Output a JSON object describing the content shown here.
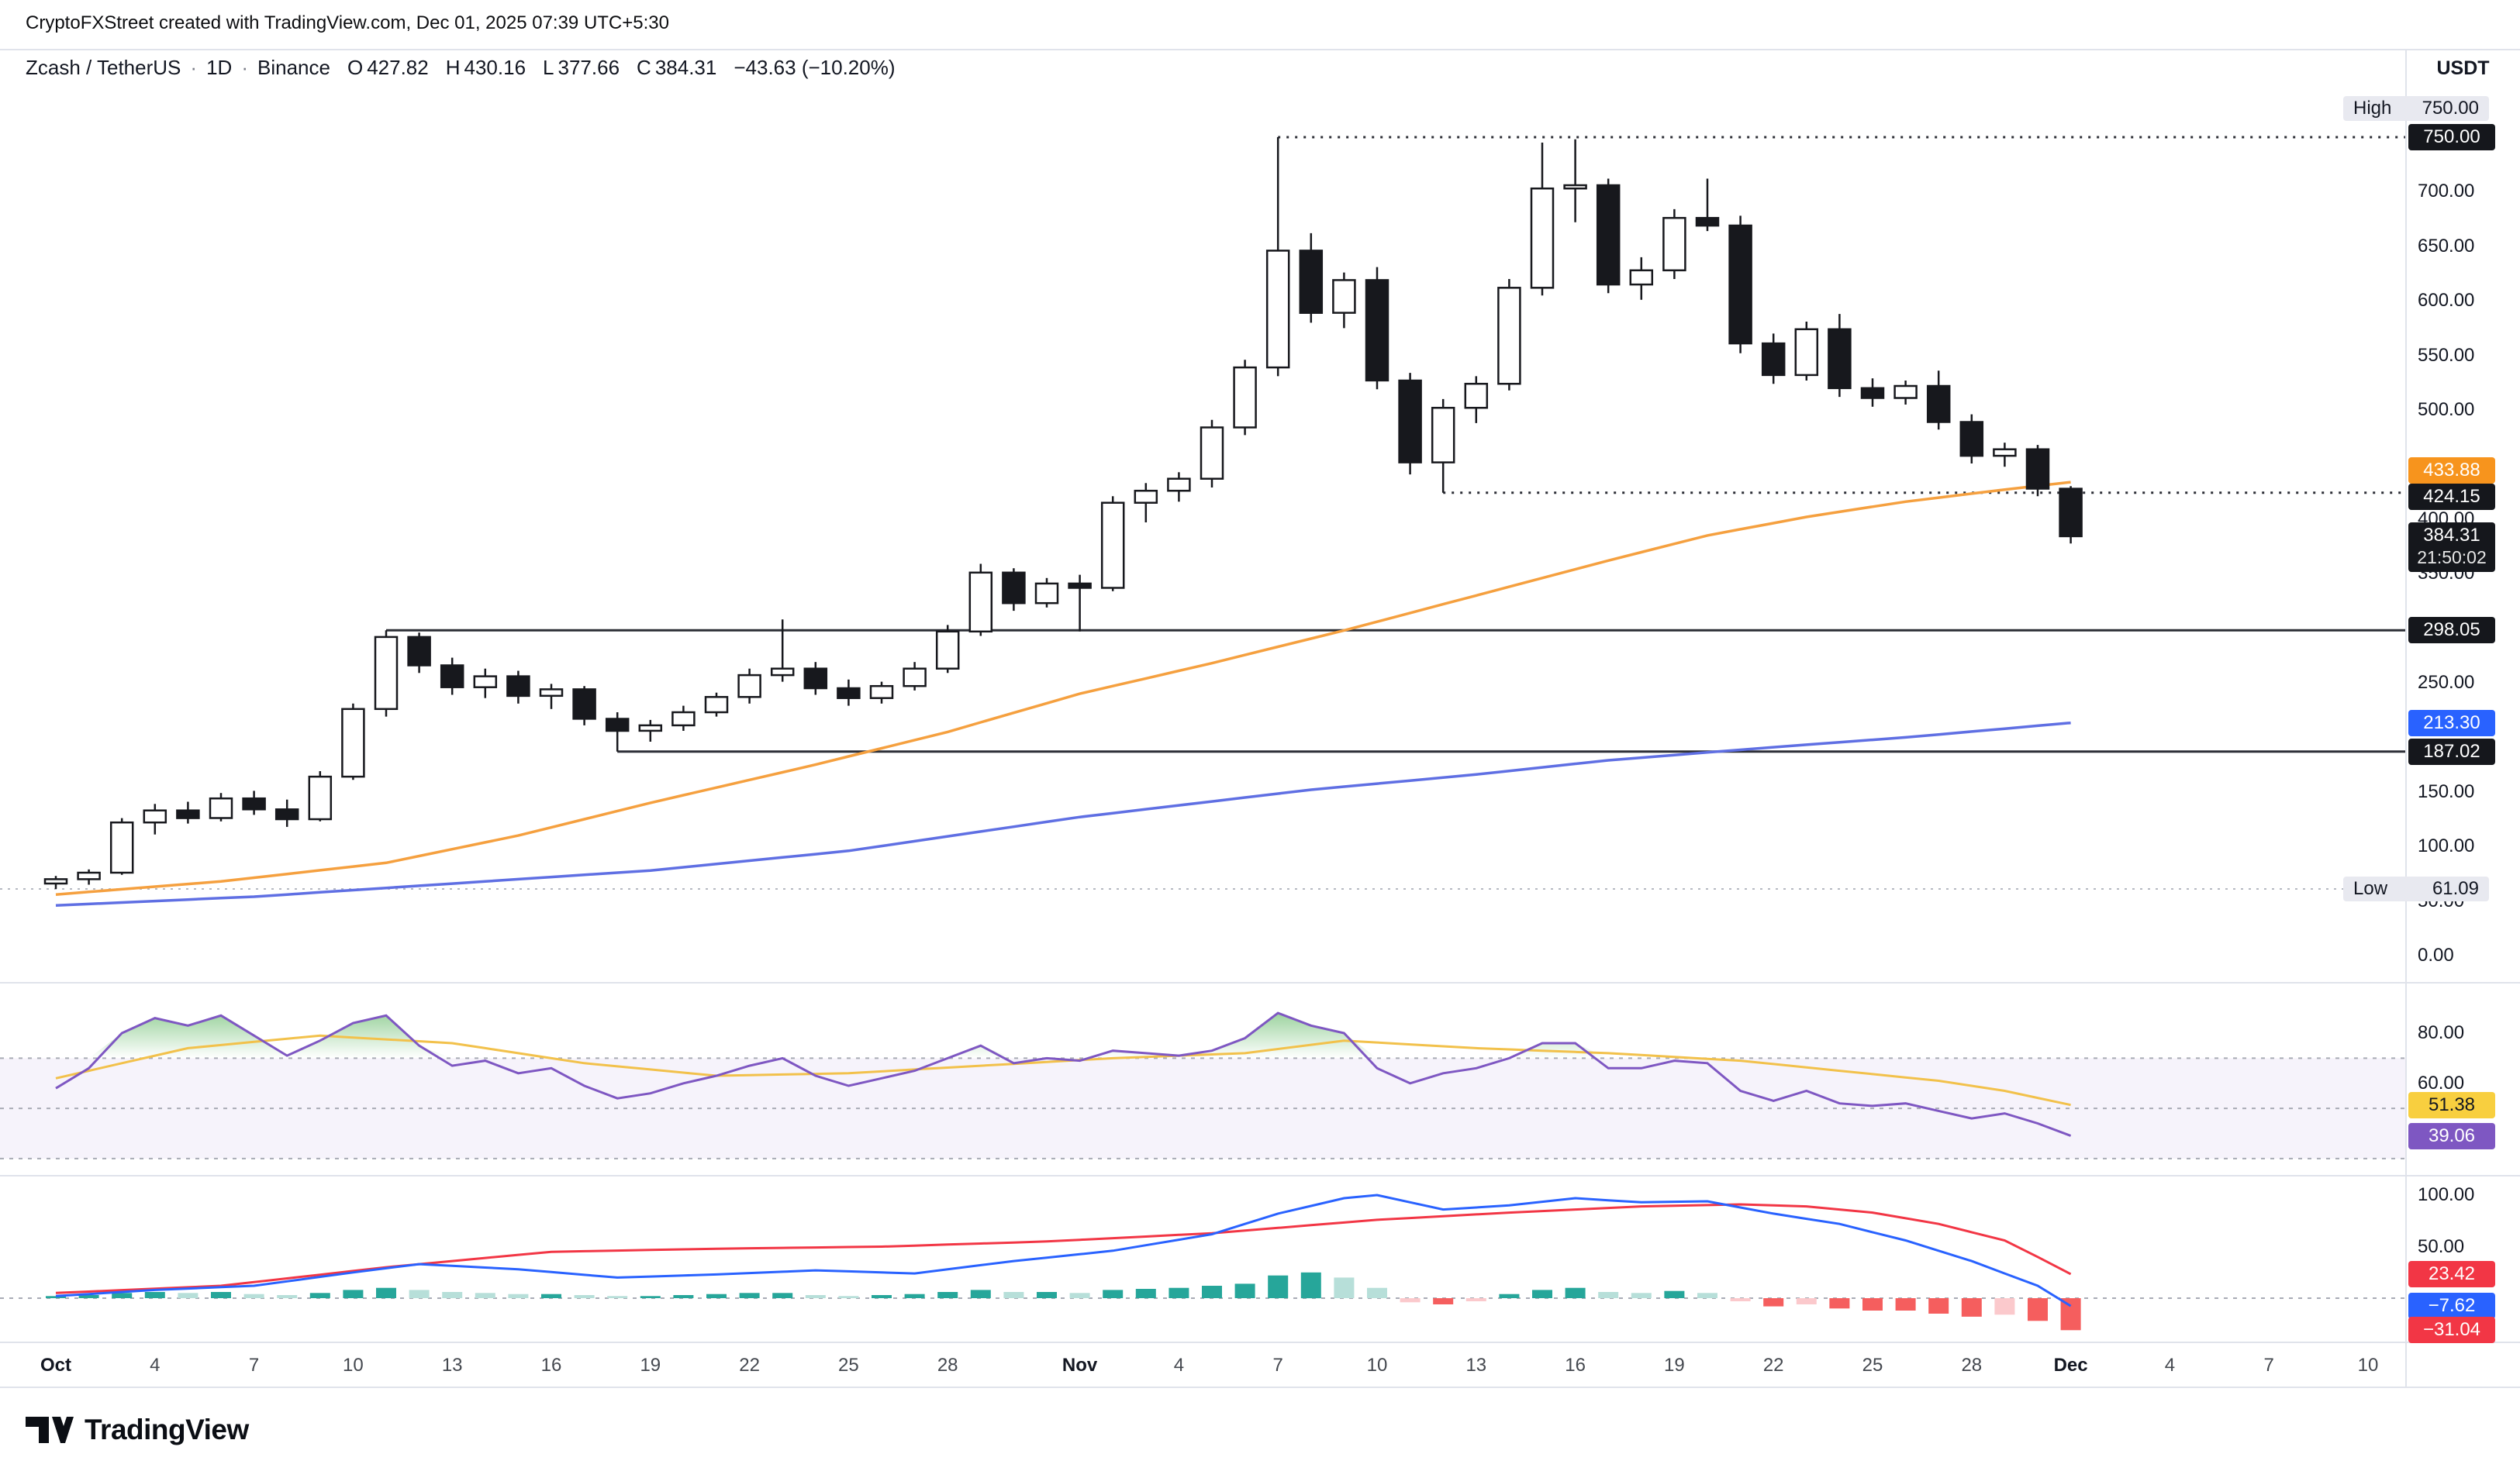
{
  "attribution": "CryptoFXStreet created with TradingView.com, Dec 01, 2025 07:39 UTC+5:30",
  "header": {
    "symbol": "Zcash / TetherUS",
    "interval": "1D",
    "exchange": "Binance",
    "sep": "·",
    "open_label": "O",
    "open": "427.82",
    "high_label": "H",
    "high": "430.16",
    "low_label": "L",
    "low": "377.66",
    "close_label": "C",
    "close": "384.31",
    "change": "−43.63 (−10.20%)",
    "currency": "USDT"
  },
  "price_axis": {
    "labels": [
      {
        "text": "700.00",
        "value": 700
      },
      {
        "text": "650.00",
        "value": 650
      },
      {
        "text": "600.00",
        "value": 600
      },
      {
        "text": "550.00",
        "value": 550
      },
      {
        "text": "500.00",
        "value": 500
      },
      {
        "text": "400.00",
        "value": 400
      },
      {
        "text": "350.00",
        "value": 350
      },
      {
        "text": "250.00",
        "value": 250
      },
      {
        "text": "150.00",
        "value": 150
      },
      {
        "text": "100.00",
        "value": 100
      },
      {
        "text": "50.00",
        "value": 50
      },
      {
        "text": "0.00",
        "value": 0
      }
    ],
    "badges": [
      {
        "type": "pill",
        "label": "High",
        "text": "750.00",
        "value": 750,
        "dy": -37
      },
      {
        "type": "dark",
        "text": "750.00",
        "value": 750
      },
      {
        "type": "orange",
        "text": "433.88",
        "value": 433.88,
        "dy": -15
      },
      {
        "type": "dark",
        "text": "424.15",
        "value": 424.15,
        "dy": 5
      },
      {
        "type": "dark",
        "text": "384.31",
        "countdown": "21:50:02",
        "value": 384.31,
        "dy": 14
      },
      {
        "type": "dark",
        "text": "298.05",
        "value": 298.05
      },
      {
        "type": "blue",
        "text": "213.30",
        "value": 213.3
      },
      {
        "type": "dark",
        "text": "187.02",
        "value": 187.02
      },
      {
        "type": "pill",
        "label": "Low",
        "text": "61.09",
        "value": 61.09
      }
    ]
  },
  "rsi_axis": {
    "labels": [
      {
        "text": "80.00",
        "value": 80
      },
      {
        "text": "60.00",
        "value": 60
      }
    ],
    "badges": [
      {
        "type": "yellow",
        "text": "51.38",
        "value": 51.38
      },
      {
        "type": "purple",
        "text": "39.06",
        "value": 39.06
      }
    ]
  },
  "momentum_axis": {
    "labels": [
      {
        "text": "100.00",
        "value": 100
      },
      {
        "text": "50.00",
        "value": 50
      }
    ],
    "badges": [
      {
        "type": "red",
        "text": "23.42",
        "value": 23.42
      },
      {
        "type": "blue",
        "text": "−7.62",
        "value": -7.62
      },
      {
        "type": "red",
        "text": "−31.04",
        "value": -31.04
      }
    ]
  },
  "time_axis": [
    {
      "label": "Oct",
      "day": 0,
      "major": true
    },
    {
      "label": "4",
      "day": 3
    },
    {
      "label": "7",
      "day": 6
    },
    {
      "label": "10",
      "day": 9
    },
    {
      "label": "13",
      "day": 12
    },
    {
      "label": "16",
      "day": 15
    },
    {
      "label": "19",
      "day": 18
    },
    {
      "label": "22",
      "day": 21
    },
    {
      "label": "25",
      "day": 24
    },
    {
      "label": "28",
      "day": 27
    },
    {
      "label": "Nov",
      "day": 31,
      "major": true
    },
    {
      "label": "4",
      "day": 34
    },
    {
      "label": "7",
      "day": 37
    },
    {
      "label": "10",
      "day": 40
    },
    {
      "label": "13",
      "day": 43
    },
    {
      "label": "16",
      "day": 46
    },
    {
      "label": "19",
      "day": 49
    },
    {
      "label": "22",
      "day": 52
    },
    {
      "label": "25",
      "day": 55
    },
    {
      "label": "28",
      "day": 58
    },
    {
      "label": "Dec",
      "day": 61,
      "major": true
    },
    {
      "label": "4",
      "day": 64
    },
    {
      "label": "7",
      "day": 67
    },
    {
      "label": "10",
      "day": 70
    }
  ],
  "logo": {
    "text": "TradingView"
  },
  "colors": {
    "up_fill": "#ffffff",
    "candle_line": "#17181d",
    "ma_fast": "#f5a03f",
    "ma_slow": "#5f6fe3",
    "rsi": "#7e57c2",
    "rsi_ma": "#f2c14b",
    "rsi_fill": "#4caf50",
    "band_dash": "#a8abb5",
    "hist_up": "#26a69a",
    "hist_up_weak": "#b7dfd9",
    "hist_down": "#f55e5e",
    "hist_down_weak": "#fbc9cc",
    "mom_blue": "#2962ff",
    "mom_red": "#f23645",
    "level": "#2c2e36",
    "level_light": "#b6b9c2",
    "divider": "#e0e3eb"
  },
  "chart_data": {
    "type": "candlestick",
    "title": "Zcash / TetherUS · 1D · Binance",
    "ylabel": "Price (USDT)",
    "ylim": [
      0,
      780
    ],
    "legend_position": "none",
    "dates": [
      "2025-10-01",
      "2025-10-02",
      "2025-10-03",
      "2025-10-04",
      "2025-10-05",
      "2025-10-06",
      "2025-10-07",
      "2025-10-08",
      "2025-10-09",
      "2025-10-10",
      "2025-10-11",
      "2025-10-12",
      "2025-10-13",
      "2025-10-14",
      "2025-10-15",
      "2025-10-16",
      "2025-10-17",
      "2025-10-18",
      "2025-10-19",
      "2025-10-20",
      "2025-10-21",
      "2025-10-22",
      "2025-10-23",
      "2025-10-24",
      "2025-10-25",
      "2025-10-26",
      "2025-10-27",
      "2025-10-28",
      "2025-10-29",
      "2025-10-30",
      "2025-10-31",
      "2025-11-01",
      "2025-11-02",
      "2025-11-03",
      "2025-11-04",
      "2025-11-05",
      "2025-11-06",
      "2025-11-07",
      "2025-11-08",
      "2025-11-09",
      "2025-11-10",
      "2025-11-11",
      "2025-11-12",
      "2025-11-13",
      "2025-11-14",
      "2025-11-15",
      "2025-11-16",
      "2025-11-17",
      "2025-11-18",
      "2025-11-19",
      "2025-11-20",
      "2025-11-21",
      "2025-11-22",
      "2025-11-23",
      "2025-11-24",
      "2025-11-25",
      "2025-11-26",
      "2025-11-27",
      "2025-11-28",
      "2025-11-29",
      "2025-11-30",
      "2025-12-01"
    ],
    "ohlc": [
      [
        66,
        73,
        61.09,
        70
      ],
      [
        70,
        79,
        65,
        76
      ],
      [
        76,
        126,
        74,
        122
      ],
      [
        122,
        139,
        111,
        133
      ],
      [
        133,
        141,
        121,
        126
      ],
      [
        126,
        149,
        123,
        144
      ],
      [
        144,
        151,
        129,
        134
      ],
      [
        134,
        143,
        118,
        125
      ],
      [
        125,
        169,
        123,
        164
      ],
      [
        164,
        231,
        161,
        226
      ],
      [
        226,
        298.05,
        219,
        292
      ],
      [
        292,
        296,
        259,
        266
      ],
      [
        266,
        273,
        239,
        246
      ],
      [
        246,
        263,
        236,
        256
      ],
      [
        256,
        261,
        231,
        238
      ],
      [
        238,
        249,
        226,
        244
      ],
      [
        244,
        247,
        211,
        217
      ],
      [
        217,
        223,
        187.02,
        206
      ],
      [
        206,
        216,
        196,
        211
      ],
      [
        211,
        229,
        206,
        223
      ],
      [
        223,
        241,
        219,
        237
      ],
      [
        237,
        263,
        231,
        257
      ],
      [
        257,
        308,
        251,
        263
      ],
      [
        263,
        269,
        239,
        245
      ],
      [
        245,
        253,
        229,
        236
      ],
      [
        236,
        251,
        231,
        247
      ],
      [
        247,
        269,
        243,
        263
      ],
      [
        263,
        303,
        259,
        297
      ],
      [
        297,
        359,
        293,
        351
      ],
      [
        351,
        355,
        316,
        323
      ],
      [
        323,
        346,
        319,
        341
      ],
      [
        341,
        349,
        297,
        337
      ],
      [
        337,
        421,
        334,
        415
      ],
      [
        415,
        433,
        397,
        426
      ],
      [
        426,
        443,
        416,
        437
      ],
      [
        437,
        491,
        429,
        484
      ],
      [
        484,
        546,
        477,
        539
      ],
      [
        539,
        750,
        531,
        646
      ],
      [
        646,
        662,
        580,
        589
      ],
      [
        589,
        626,
        575,
        619
      ],
      [
        619,
        631,
        519,
        527
      ],
      [
        527,
        534,
        441,
        452
      ],
      [
        452,
        510,
        424.15,
        502
      ],
      [
        502,
        531,
        488,
        524
      ],
      [
        524,
        620,
        518,
        612
      ],
      [
        612,
        745,
        605,
        703
      ],
      [
        703,
        748,
        672,
        706
      ],
      [
        706,
        712,
        607,
        615
      ],
      [
        615,
        640,
        601,
        628
      ],
      [
        628,
        684,
        620,
        676
      ],
      [
        676,
        712,
        664,
        669
      ],
      [
        669,
        678,
        552,
        561
      ],
      [
        561,
        570,
        524,
        532
      ],
      [
        532,
        581,
        527,
        574
      ],
      [
        574,
        588,
        512,
        520
      ],
      [
        520,
        529,
        503,
        511
      ],
      [
        511,
        527,
        505,
        522
      ],
      [
        522,
        536,
        482,
        489
      ],
      [
        489,
        496,
        451,
        458
      ],
      [
        458,
        470,
        448,
        464
      ],
      [
        464,
        468,
        421,
        427.94
      ],
      [
        427.82,
        430.16,
        377.66,
        384.31
      ]
    ],
    "ma_fast_orange": {
      "last": 433.88,
      "points": [
        [
          0,
          56
        ],
        [
          5,
          68
        ],
        [
          10,
          85
        ],
        [
          14,
          110
        ],
        [
          18,
          140
        ],
        [
          23,
          175
        ],
        [
          27,
          205
        ],
        [
          31,
          240
        ],
        [
          35,
          268
        ],
        [
          39,
          298
        ],
        [
          43,
          330
        ],
        [
          47,
          362
        ],
        [
          50,
          385
        ],
        [
          53,
          402
        ],
        [
          56,
          416
        ],
        [
          59,
          427
        ],
        [
          61,
          433.88
        ]
      ]
    },
    "ma_slow_blue": {
      "last": 213.3,
      "points": [
        [
          0,
          46
        ],
        [
          6,
          54
        ],
        [
          12,
          66
        ],
        [
          18,
          78
        ],
        [
          24,
          96
        ],
        [
          31,
          127
        ],
        [
          38,
          152
        ],
        [
          43,
          166
        ],
        [
          47,
          179
        ],
        [
          52,
          191
        ],
        [
          56,
          200
        ],
        [
          61,
          213.3
        ]
      ]
    },
    "levels": [
      {
        "value": 750.0,
        "style": "dotted",
        "from_day": 37,
        "label": "High"
      },
      {
        "value": 424.15,
        "style": "dotted",
        "from_day": 42
      },
      {
        "value": 298.05,
        "style": "solid",
        "from_day": 10
      },
      {
        "value": 187.02,
        "style": "solid",
        "from_day": 17
      },
      {
        "value": 61.09,
        "style": "dotted-light",
        "from_day": 0,
        "label": "Low"
      }
    ],
    "rsi": {
      "bands": [
        70,
        50,
        30
      ],
      "last": 39.06,
      "ma_last": 51.38,
      "values": [
        58,
        66,
        80,
        86,
        83,
        87,
        79,
        71,
        77,
        84,
        87,
        75,
        67,
        69,
        64,
        66,
        59,
        54,
        56,
        60,
        63,
        67,
        70,
        63,
        59,
        62,
        65,
        70,
        75,
        68,
        70,
        69,
        73,
        72,
        71,
        73,
        78,
        88,
        83,
        80,
        66,
        60,
        64,
        66,
        70,
        76,
        76,
        66,
        66,
        69,
        68,
        57,
        53,
        57,
        52,
        51,
        52,
        49,
        46,
        48,
        44,
        39.06
      ],
      "ma_points": [
        [
          0,
          62
        ],
        [
          4,
          74
        ],
        [
          8,
          79
        ],
        [
          12,
          76
        ],
        [
          16,
          68
        ],
        [
          20,
          63
        ],
        [
          24,
          64
        ],
        [
          28,
          67
        ],
        [
          32,
          70
        ],
        [
          36,
          72
        ],
        [
          39,
          77
        ],
        [
          43,
          74
        ],
        [
          47,
          72
        ],
        [
          51,
          69
        ],
        [
          54,
          65
        ],
        [
          57,
          61
        ],
        [
          59,
          57
        ],
        [
          61,
          51.38
        ]
      ]
    },
    "momentum": {
      "last_red": 23.42,
      "last_blue": -7.62,
      "last_hist": -31.04,
      "histogram": [
        2,
        3,
        5,
        6,
        5,
        6,
        4,
        3,
        5,
        8,
        10,
        8,
        6,
        5,
        4,
        4,
        3,
        2,
        2,
        3,
        4,
        5,
        5,
        3,
        2,
        3,
        4,
        6,
        8,
        6,
        6,
        5,
        8,
        9,
        10,
        12,
        14,
        22,
        25,
        20,
        10,
        -4,
        -6,
        -3,
        4,
        8,
        10,
        6,
        5,
        7,
        5,
        -3,
        -8,
        -6,
        -10,
        -12,
        -12,
        -15,
        -18,
        -16,
        -22,
        -31.04
      ],
      "line_blue_points": [
        [
          0,
          2
        ],
        [
          3,
          8
        ],
        [
          6,
          12
        ],
        [
          9,
          25
        ],
        [
          11,
          33
        ],
        [
          14,
          28
        ],
        [
          17,
          20
        ],
        [
          20,
          23
        ],
        [
          23,
          27
        ],
        [
          26,
          24
        ],
        [
          29,
          36
        ],
        [
          32,
          46
        ],
        [
          35,
          62
        ],
        [
          37,
          82
        ],
        [
          39,
          97
        ],
        [
          40,
          100
        ],
        [
          42,
          86
        ],
        [
          44,
          90
        ],
        [
          46,
          97
        ],
        [
          48,
          93
        ],
        [
          50,
          94
        ],
        [
          52,
          82
        ],
        [
          54,
          72
        ],
        [
          56,
          56
        ],
        [
          58,
          36
        ],
        [
          60,
          12
        ],
        [
          61,
          -7.62
        ]
      ],
      "line_red_points": [
        [
          0,
          5
        ],
        [
          5,
          12
        ],
        [
          10,
          30
        ],
        [
          15,
          45
        ],
        [
          20,
          48
        ],
        [
          25,
          50
        ],
        [
          30,
          55
        ],
        [
          35,
          63
        ],
        [
          40,
          76
        ],
        [
          44,
          83
        ],
        [
          48,
          89
        ],
        [
          51,
          91
        ],
        [
          53,
          89
        ],
        [
          55,
          83
        ],
        [
          57,
          72
        ],
        [
          59,
          56
        ],
        [
          60,
          40
        ],
        [
          61,
          23.42
        ]
      ]
    }
  }
}
